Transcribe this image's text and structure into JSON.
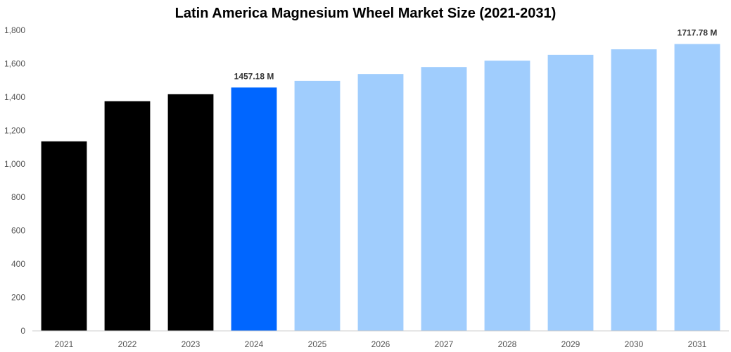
{
  "chart_data": {
    "type": "bar",
    "title": "Latin America Magnesium Wheel Market Size (2021-2031)",
    "xlabel": "",
    "ylabel": "",
    "categories": [
      "2021",
      "2022",
      "2023",
      "2024",
      "2025",
      "2026",
      "2027",
      "2028",
      "2029",
      "2030",
      "2031"
    ],
    "values": [
      1135,
      1375,
      1417,
      1457.18,
      1497,
      1538,
      1580,
      1618,
      1653,
      1686,
      1717.78
    ],
    "colors": [
      "#000000",
      "#000000",
      "#000000",
      "#0066ff",
      "#a0cdfd",
      "#a0cdfd",
      "#a0cdfd",
      "#a0cdfd",
      "#a0cdfd",
      "#a0cdfd",
      "#a0cdfd"
    ],
    "ylim": [
      0,
      1800
    ],
    "yticks": [
      "0",
      "200",
      "400",
      "600",
      "800",
      "1,000",
      "1,200",
      "1,400",
      "1,600",
      "1,800"
    ],
    "data_labels": [
      {
        "category": "2024",
        "text": "1457.18 M"
      },
      {
        "category": "2031",
        "text": "1717.78 M"
      }
    ],
    "grid": false,
    "legend": "none"
  }
}
